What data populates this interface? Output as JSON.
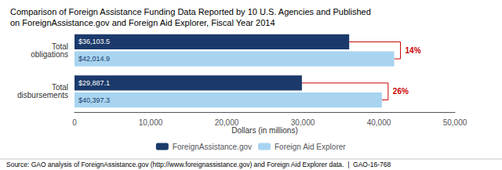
{
  "chart_data": {
    "type": "bar",
    "orientation": "horizontal",
    "title": "Comparison of Foreign Assistance Funding Data Reported by 10 U.S. Agencies and Published\non ForeignAssistance.gov and Foreign Aid Explorer, Fiscal Year 2014",
    "categories": [
      "Total\nobligations",
      "Total\ndisbursements"
    ],
    "series": [
      {
        "name": "ForeignAssistance.gov",
        "color": "#1b3a6b",
        "values": [
          36103.5,
          29887.1
        ],
        "value_labels": [
          "$36,103.5",
          "$29,887.1"
        ]
      },
      {
        "name": "Foreign Aid Explorer",
        "color": "#a8d4f0",
        "values": [
          42014.9,
          40397.3
        ],
        "value_labels": [
          "$42,014.9",
          "$40,397.3"
        ]
      }
    ],
    "data_labels": true,
    "xlabel": "Dollars (in millions)",
    "xlim": [
      0,
      50000
    ],
    "xticks": [
      0,
      {
        "value": 10000,
        "label": "10,000"
      },
      {
        "value": 20000,
        "label": "20,000"
      },
      {
        "value": 30000,
        "label": "30,000"
      },
      {
        "value": 40000,
        "label": "40,000"
      },
      {
        "value": 50000,
        "label": "50,000"
      }
    ],
    "annotations": [
      {
        "category": "Total\nobligations",
        "text": "14%",
        "color": "#cc0000"
      },
      {
        "category": "Total\ndisbursements",
        "text": "26%",
        "color": "#cc0000"
      }
    ],
    "source": "Source: GAO analysis of ForeignAssistance.gov (http://www.foreignassistance.gov) and Foreign Aid Explorer data.  |  GAO-16-768",
    "legend": "bottom",
    "grid": false
  }
}
